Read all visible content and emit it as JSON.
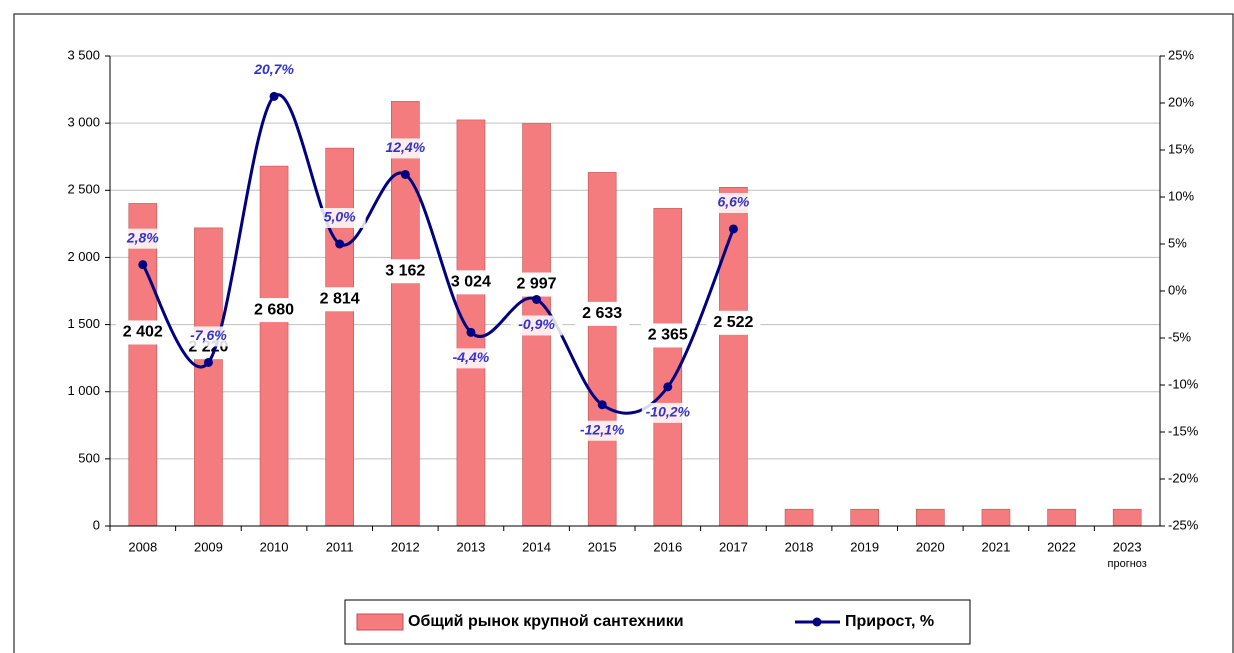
{
  "chart_data": {
    "type": "bar",
    "categories": [
      "2008",
      "2009",
      "2010",
      "2011",
      "2012",
      "2013",
      "2014",
      "2015",
      "2016",
      "2017",
      "2018",
      "2019",
      "2020",
      "2021",
      "2022",
      "2023"
    ],
    "annotation": "прогноз",
    "series": [
      {
        "name": "Общий  рынок крупной сантехники",
        "type": "bar",
        "color": "#f47c7f",
        "values": [
          2402,
          2220,
          2680,
          2814,
          3162,
          3024,
          2997,
          2633,
          2365,
          2522,
          125,
          125,
          125,
          125,
          125,
          125
        ],
        "value_labels": [
          "2 402",
          "2 220",
          "2 680",
          "2 814",
          "3 162",
          "3 024",
          "2 997",
          "2 633",
          "2 365",
          "2 522",
          null,
          null,
          null,
          null,
          null,
          null
        ]
      },
      {
        "name": "Прирост,  %",
        "type": "line",
        "axis": "y2",
        "color": "#000080",
        "values": [
          2.8,
          -7.6,
          20.7,
          5.0,
          12.4,
          -4.4,
          -0.9,
          -12.1,
          -10.2,
          6.6,
          null,
          null,
          null,
          null,
          null,
          null
        ],
        "value_labels": [
          "2,8%",
          "-7,6%",
          "20,7%",
          "5,0%",
          "12,4%",
          "-4,4%",
          "-0,9%",
          "-12,1%",
          "-10,2%",
          "6,6%",
          null,
          null,
          null,
          null,
          null,
          null
        ]
      }
    ],
    "ylim": [
      0,
      3500
    ],
    "yticks": [
      0,
      500,
      {
        "value": 1000,
        "label": "1 000"
      },
      {
        "value": 1500,
        "label": "1 500"
      },
      {
        "value": 2000,
        "label": "2 000"
      },
      {
        "value": 2500,
        "label": "2 500"
      },
      {
        "value": 3000,
        "label": "3 000"
      },
      {
        "value": 3500,
        "label": "3 500"
      }
    ],
    "y2lim": [
      -25,
      25
    ],
    "y2ticks": [
      {
        "value": -25,
        "label": "-25%"
      },
      {
        "value": -20,
        "label": "-20%"
      },
      {
        "value": -15,
        "label": "-15%"
      },
      {
        "value": -10,
        "label": "-10%"
      },
      {
        "value": -5,
        "label": "-5%"
      },
      {
        "value": 0,
        "label": "0%"
      },
      {
        "value": 5,
        "label": "5%"
      },
      {
        "value": 10,
        "label": "10%"
      },
      {
        "value": 15,
        "label": "15%"
      },
      {
        "value": 20,
        "label": "20%"
      },
      {
        "value": 25,
        "label": "25%"
      }
    ],
    "grid": true,
    "legend": "bottom"
  }
}
